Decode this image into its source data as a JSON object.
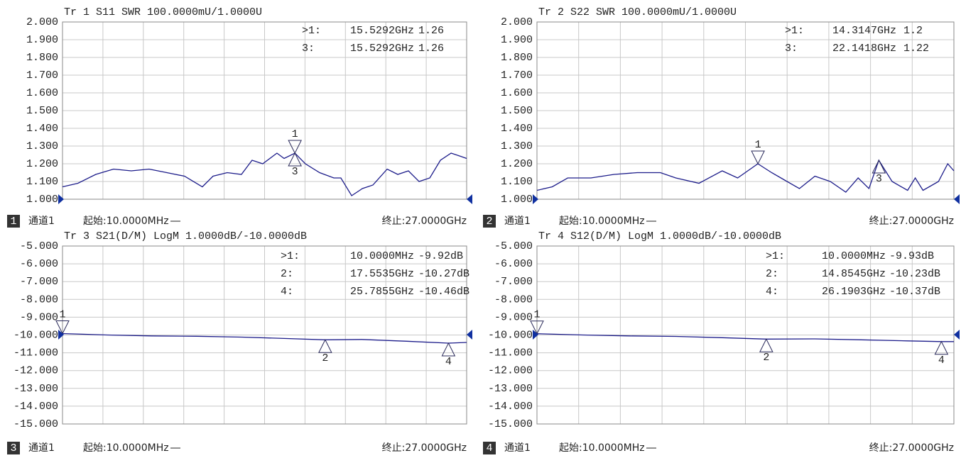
{
  "chart_data": [
    {
      "type": "line",
      "title": "Tr 1  S11 SWR 100.0000mU/1.0000U",
      "badge": "1",
      "channel": "通道1",
      "start_label": "起始:10.0000MHz",
      "stop_label": "终止:27.0000GHz",
      "xlim": [
        0.01,
        27
      ],
      "ylim": [
        1,
        2
      ],
      "grid": true,
      "yticks": [
        {
          "value": 2,
          "label": "2.000"
        },
        {
          "value": 1.9,
          "label": "1.900"
        },
        {
          "value": 1.8,
          "label": "1.800"
        },
        {
          "value": 1.7,
          "label": "1.700"
        },
        {
          "value": 1.6,
          "label": "1.600"
        },
        {
          "value": 1.5,
          "label": "1.500"
        },
        {
          "value": 1.4,
          "label": "1.400"
        },
        {
          "value": 1.3,
          "label": "1.300"
        },
        {
          "value": 1.2,
          "label": "1.200"
        },
        {
          "value": 1.1,
          "label": "1.100"
        },
        {
          "value": 1,
          "label": "1.000"
        }
      ],
      "series": [
        {
          "color": "#1c1c8a",
          "x": [
            0.01,
            1.04,
            2.23,
            3.42,
            4.6,
            5.79,
            6.98,
            8.16,
            9.35,
            10.06,
            11.01,
            11.96,
            12.67,
            13.38,
            14.33,
            14.81,
            15.53,
            16.23,
            17.18,
            18.13,
            18.6,
            19.32,
            20.03,
            20.74,
            21.69,
            22.4,
            23.11,
            23.82,
            24.54,
            25.25,
            25.96,
            26.67,
            27
          ],
          "values": [
            1.07,
            1.09,
            1.14,
            1.17,
            1.16,
            1.17,
            1.15,
            1.13,
            1.07,
            1.13,
            1.15,
            1.14,
            1.22,
            1.2,
            1.26,
            1.23,
            1.26,
            1.2,
            1.15,
            1.12,
            1.12,
            1.02,
            1.06,
            1.08,
            1.17,
            1.14,
            1.16,
            1.1,
            1.12,
            1.22,
            1.26,
            1.24,
            1.23
          ]
        }
      ],
      "markers": [
        {
          "id": "1",
          "table_label": ">1:",
          "x": 15.5292,
          "x_label": "15.5292GHz",
          "y": 1.26
        },
        {
          "id": "3",
          "table_label": "3:",
          "x": 15.5292,
          "x_label": "15.5292GHz",
          "y": 1.26
        }
      ]
    },
    {
      "type": "line",
      "title": "Tr 2  S22 SWR 100.0000mU/1.0000U",
      "badge": "2",
      "channel": "通道1",
      "start_label": "起始:10.0000MHz",
      "stop_label": "终止:27.0000GHz",
      "xlim": [
        0.01,
        27
      ],
      "ylim": [
        1,
        2
      ],
      "grid": true,
      "yticks": [
        {
          "value": 2,
          "label": "2.000"
        },
        {
          "value": 1.9,
          "label": "1.900"
        },
        {
          "value": 1.8,
          "label": "1.800"
        },
        {
          "value": 1.7,
          "label": "1.700"
        },
        {
          "value": 1.6,
          "label": "1.600"
        },
        {
          "value": 1.5,
          "label": "1.500"
        },
        {
          "value": 1.4,
          "label": "1.400"
        },
        {
          "value": 1.3,
          "label": "1.300"
        },
        {
          "value": 1.2,
          "label": "1.200"
        },
        {
          "value": 1.1,
          "label": "1.100"
        },
        {
          "value": 1,
          "label": "1.000"
        }
      ],
      "series": [
        {
          "color": "#1c1c8a",
          "x": [
            0.01,
            1,
            2,
            3.5,
            5,
            6.5,
            8,
            9,
            10.5,
            12,
            13,
            14.31,
            15.2,
            16,
            17,
            18,
            19,
            20,
            20.8,
            21.5,
            22.14,
            23,
            24,
            24.5,
            25,
            26,
            26.6,
            27
          ],
          "values": [
            1.05,
            1.07,
            1.12,
            1.12,
            1.14,
            1.15,
            1.15,
            1.12,
            1.09,
            1.16,
            1.12,
            1.2,
            1.15,
            1.11,
            1.06,
            1.13,
            1.1,
            1.04,
            1.12,
            1.06,
            1.22,
            1.1,
            1.05,
            1.12,
            1.05,
            1.1,
            1.2,
            1.16
          ]
        }
      ],
      "markers": [
        {
          "id": "1",
          "table_label": ">1:",
          "x": 14.3147,
          "x_label": "14.3147GHz",
          "y": 1.2
        },
        {
          "id": "3",
          "table_label": "3:",
          "x": 22.1418,
          "x_label": "22.1418GHz",
          "y": 1.22
        }
      ]
    },
    {
      "type": "line",
      "title": "Tr 3  S21(D/M) LogM 1.0000dB/-10.0000dB",
      "badge": "3",
      "channel": "通道1",
      "start_label": "起始:10.0000MHz",
      "stop_label": "终止:27.0000GHz",
      "xlim": [
        0.01,
        27
      ],
      "ylim": [
        -15,
        -5
      ],
      "grid": true,
      "yticks": [
        {
          "value": -5,
          "label": "-5.000"
        },
        {
          "value": -6,
          "label": "-6.000"
        },
        {
          "value": -7,
          "label": "-7.000"
        },
        {
          "value": -8,
          "label": "-8.000"
        },
        {
          "value": -9,
          "label": "-9.000"
        },
        {
          "value": -10,
          "label": "-10.000"
        },
        {
          "value": -11,
          "label": "-11.000"
        },
        {
          "value": -12,
          "label": "-12.000"
        },
        {
          "value": -13,
          "label": "-13.000"
        },
        {
          "value": -14,
          "label": "-14.000"
        },
        {
          "value": -15,
          "label": "-15.000"
        }
      ],
      "series": [
        {
          "color": "#1c1c8a",
          "x": [
            0.01,
            3,
            6,
            9,
            12,
            15,
            17.55,
            20,
            23,
            25.79,
            27
          ],
          "values": [
            -9.92,
            -10,
            -10.05,
            -10.07,
            -10.12,
            -10.2,
            -10.27,
            -10.25,
            -10.35,
            -10.46,
            -10.42
          ]
        }
      ],
      "markers": [
        {
          "id": "1",
          "table_label": ">1:",
          "x": 0.01,
          "x_label": "10.0000MHz",
          "y": -9.92,
          "y_label": "-9.92dB"
        },
        {
          "id": "2",
          "table_label": "2:",
          "x": 17.5535,
          "x_label": "17.5535GHz",
          "y": -10.27,
          "y_label": "-10.27dB"
        },
        {
          "id": "4",
          "table_label": "4:",
          "x": 25.7855,
          "x_label": "25.7855GHz",
          "y": -10.46,
          "y_label": "-10.46dB"
        }
      ]
    },
    {
      "type": "line",
      "title": "Tr 4  S12(D/M) LogM 1.0000dB/-10.0000dB",
      "badge": "4",
      "channel": "通道1",
      "start_label": "起始:10.0000MHz",
      "stop_label": "终止:27.0000GHz",
      "xlim": [
        0.01,
        27
      ],
      "ylim": [
        -15,
        -5
      ],
      "grid": true,
      "yticks": [
        {
          "value": -5,
          "label": "-5.000"
        },
        {
          "value": -6,
          "label": "-6.000"
        },
        {
          "value": -7,
          "label": "-7.000"
        },
        {
          "value": -8,
          "label": "-8.000"
        },
        {
          "value": -9,
          "label": "-9.000"
        },
        {
          "value": -10,
          "label": "-10.000"
        },
        {
          "value": -11,
          "label": "-11.000"
        },
        {
          "value": -12,
          "label": "-12.000"
        },
        {
          "value": -13,
          "label": "-13.000"
        },
        {
          "value": -14,
          "label": "-14.000"
        },
        {
          "value": -15,
          "label": "-15.000"
        }
      ],
      "series": [
        {
          "color": "#1c1c8a",
          "x": [
            0.01,
            3,
            6,
            9,
            12,
            14.85,
            18,
            21,
            24,
            26.19,
            27
          ],
          "values": [
            -9.93,
            -10,
            -10.05,
            -10.08,
            -10.15,
            -10.23,
            -10.22,
            -10.27,
            -10.33,
            -10.37,
            -10.37
          ]
        }
      ],
      "markers": [
        {
          "id": "1",
          "table_label": ">1:",
          "x": 0.01,
          "x_label": "10.0000MHz",
          "y": -9.93,
          "y_label": "-9.93dB"
        },
        {
          "id": "2",
          "table_label": "2:",
          "x": 14.8545,
          "x_label": "14.8545GHz",
          "y": -10.23,
          "y_label": "-10.23dB"
        },
        {
          "id": "4",
          "table_label": "4:",
          "x": 26.1903,
          "x_label": "26.1903GHz",
          "y": -10.37,
          "y_label": "-10.37dB"
        }
      ]
    }
  ]
}
